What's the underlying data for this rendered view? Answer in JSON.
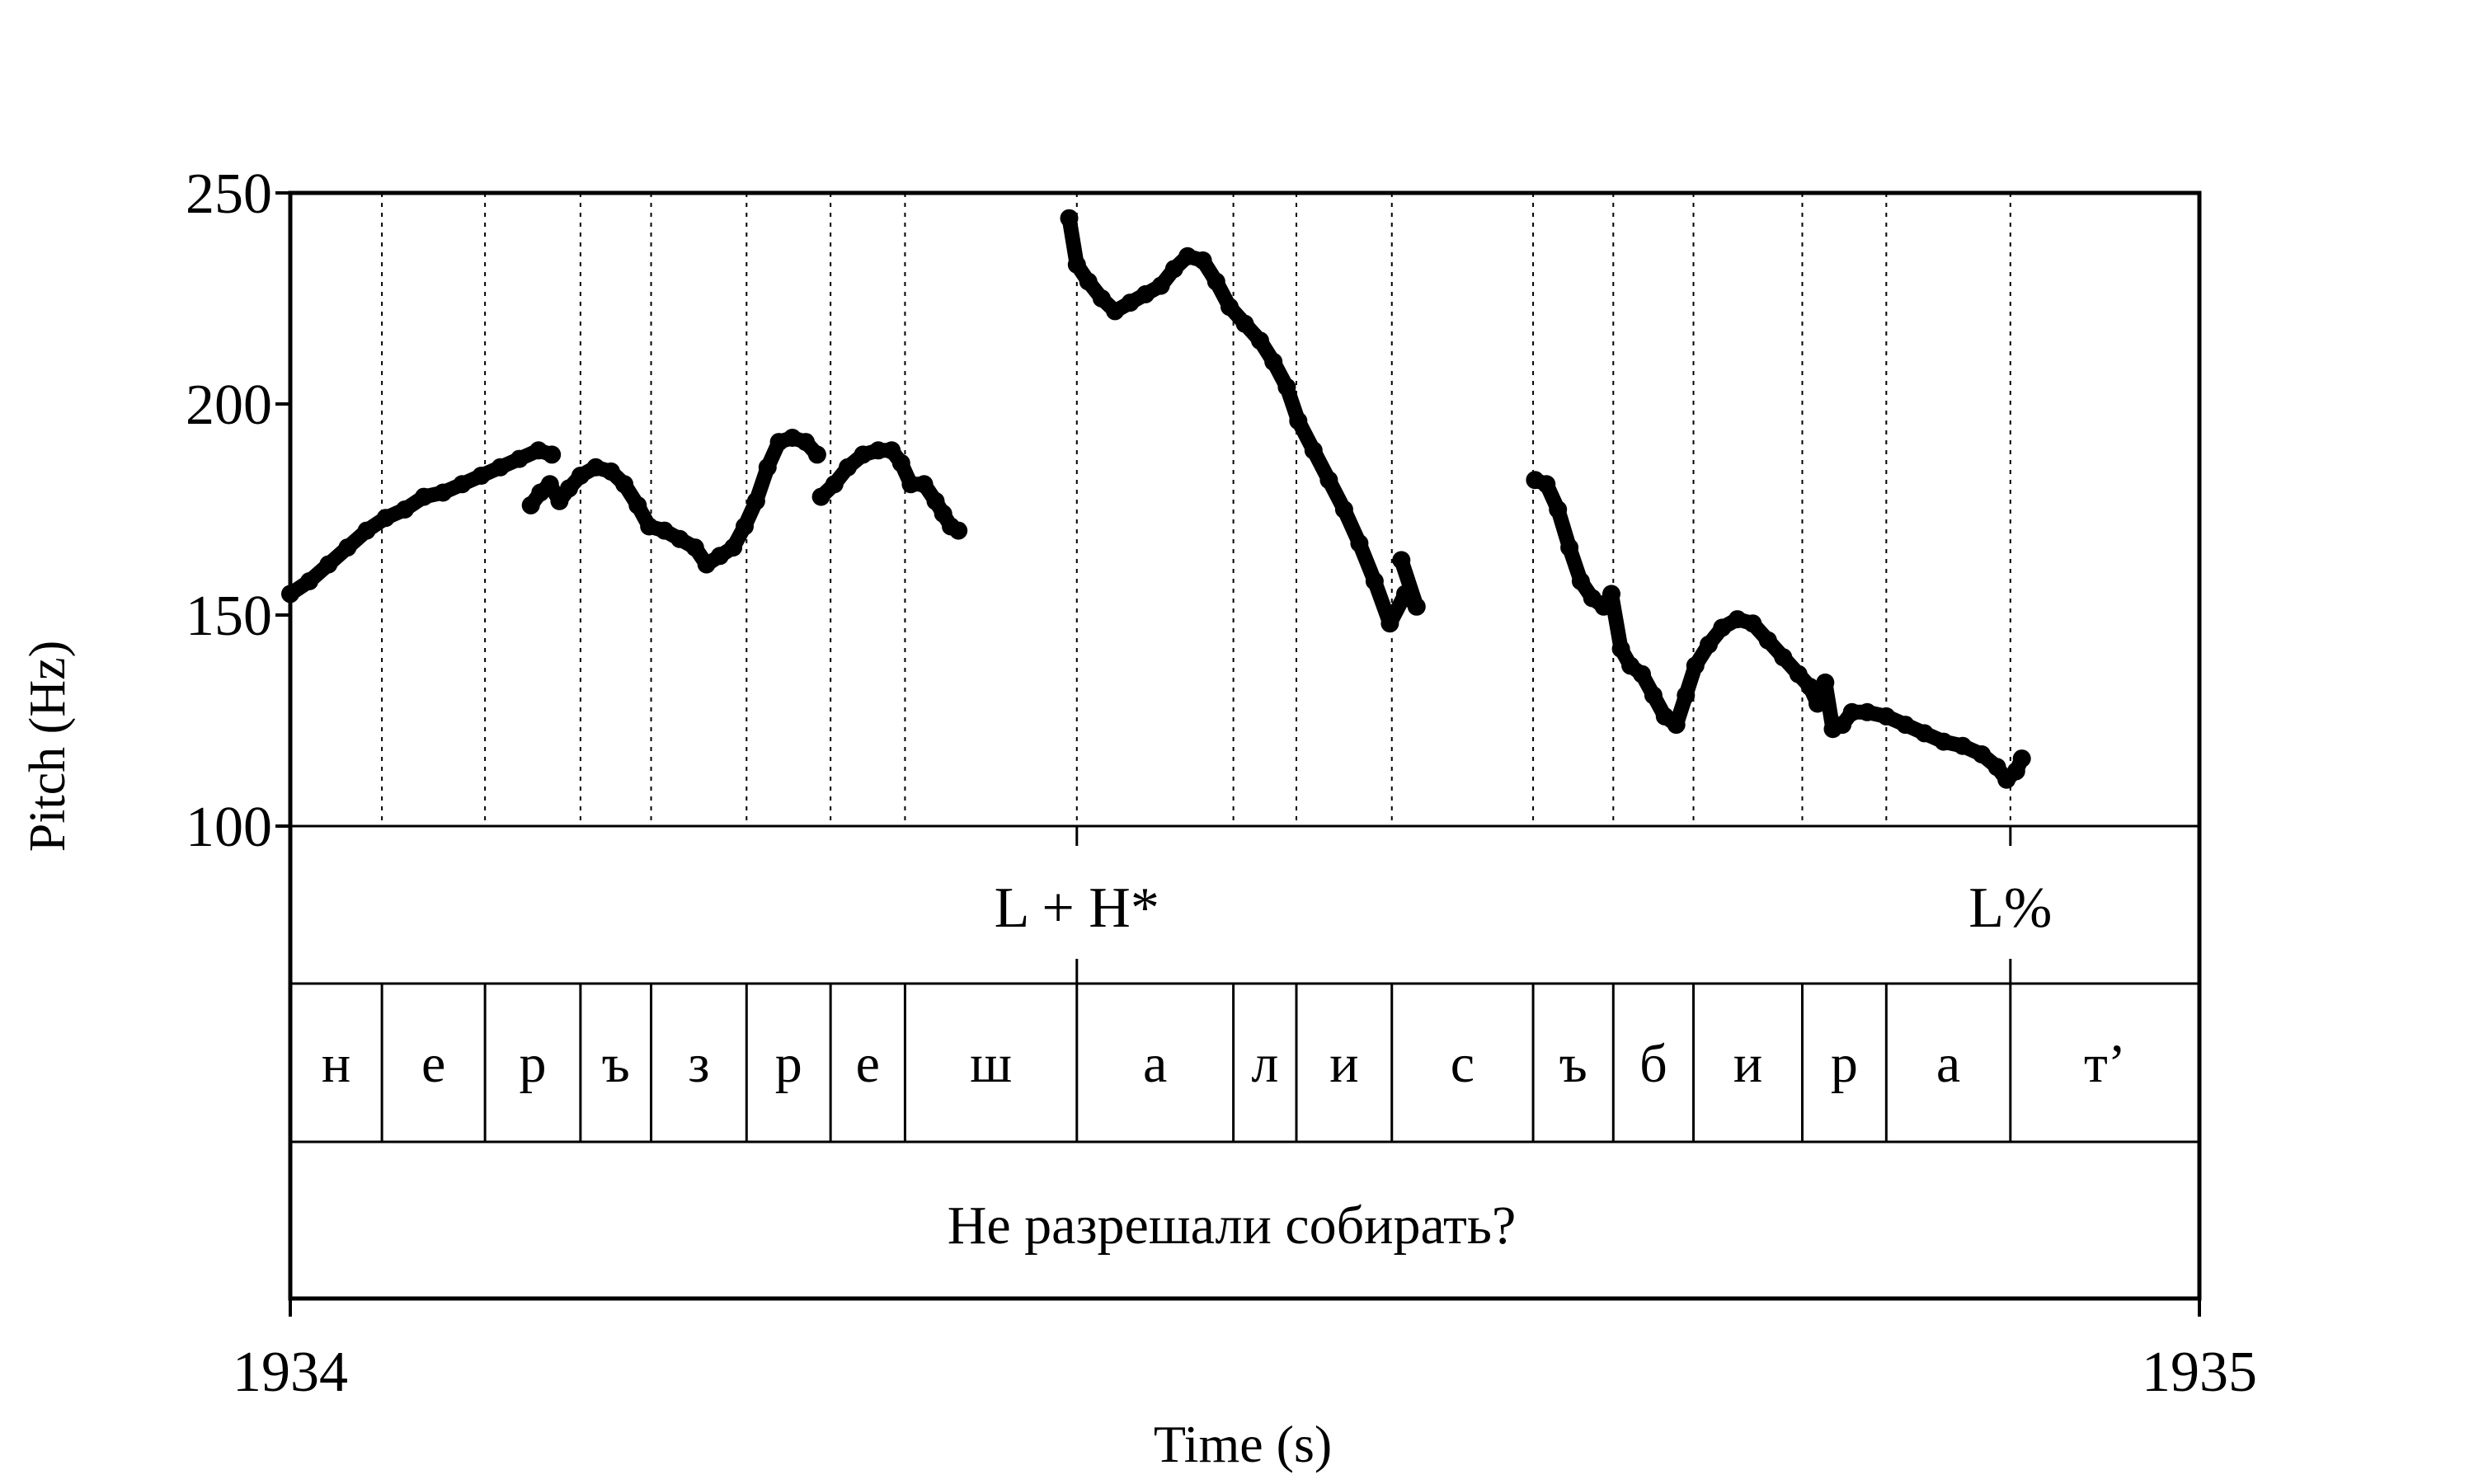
{
  "chart_data": {
    "type": "scatter",
    "ylabel": "Pitch (Hz)",
    "xlabel": "Time (s)",
    "ylim": [
      100,
      250
    ],
    "xlim": [
      1934,
      1935
    ],
    "yticks": [
      "250",
      "200",
      "150",
      "100"
    ],
    "xticks": [
      "1934",
      "1935"
    ],
    "boundaries": [
      1934.048,
      1934.102,
      1934.152,
      1934.189,
      1934.239,
      1934.283,
      1934.322,
      1934.412,
      1934.494,
      1934.527,
      1934.577,
      1934.651,
      1934.693,
      1934.735,
      1934.792,
      1934.836,
      1934.901
    ],
    "tones": [
      {
        "label": "L + H*",
        "t": 1934.412
      },
      {
        "label": "L%",
        "t": 1934.901
      }
    ],
    "segments": [
      {
        "label": "н",
        "start": 1934.0,
        "end": 1934.048
      },
      {
        "label": "е",
        "start": 1934.048,
        "end": 1934.102
      },
      {
        "label": "р",
        "start": 1934.102,
        "end": 1934.152
      },
      {
        "label": "ъ",
        "start": 1934.152,
        "end": 1934.189
      },
      {
        "label": "з",
        "start": 1934.189,
        "end": 1934.239
      },
      {
        "label": "р",
        "start": 1934.239,
        "end": 1934.283
      },
      {
        "label": "е",
        "start": 1934.283,
        "end": 1934.322
      },
      {
        "label": "ш",
        "start": 1934.322,
        "end": 1934.412
      },
      {
        "label": "а",
        "start": 1934.412,
        "end": 1934.494
      },
      {
        "label": "л",
        "start": 1934.494,
        "end": 1934.527
      },
      {
        "label": "и",
        "start": 1934.527,
        "end": 1934.577
      },
      {
        "label": "с",
        "start": 1934.577,
        "end": 1934.651
      },
      {
        "label": "ъ",
        "start": 1934.651,
        "end": 1934.693
      },
      {
        "label": "б",
        "start": 1934.693,
        "end": 1934.735
      },
      {
        "label": "и",
        "start": 1934.735,
        "end": 1934.792
      },
      {
        "label": "р",
        "start": 1934.792,
        "end": 1934.836
      },
      {
        "label": "а",
        "start": 1934.836,
        "end": 1934.901
      },
      {
        "label": "т’",
        "start": 1934.901,
        "end": 1935.0
      }
    ],
    "sentence": "Не разрешали собирать?",
    "pitch_contours": [
      [
        [
          1934.0,
          155
        ],
        [
          1934.01,
          158
        ],
        [
          1934.02,
          162
        ],
        [
          1934.03,
          166
        ],
        [
          1934.04,
          170
        ],
        [
          1934.05,
          173
        ],
        [
          1934.06,
          175
        ],
        [
          1934.07,
          178
        ],
        [
          1934.08,
          179
        ],
        [
          1934.09,
          181
        ],
        [
          1934.1,
          183
        ],
        [
          1934.11,
          185
        ],
        [
          1934.12,
          187
        ],
        [
          1934.13,
          189
        ],
        [
          1934.137,
          188
        ]
      ],
      [
        [
          1934.126,
          176
        ],
        [
          1934.131,
          179
        ],
        [
          1934.136,
          181
        ],
        [
          1934.141,
          177
        ],
        [
          1934.146,
          180
        ],
        [
          1934.152,
          183
        ],
        [
          1934.16,
          185
        ],
        [
          1934.168,
          184
        ],
        [
          1934.175,
          181
        ],
        [
          1934.182,
          176
        ],
        [
          1934.188,
          171
        ],
        [
          1934.196,
          170
        ],
        [
          1934.204,
          168
        ],
        [
          1934.212,
          166
        ],
        [
          1934.218,
          162
        ],
        [
          1934.225,
          164
        ],
        [
          1934.232,
          166
        ],
        [
          1934.238,
          171
        ],
        [
          1934.244,
          177
        ],
        [
          1934.25,
          185
        ],
        [
          1934.256,
          191
        ],
        [
          1934.263,
          192
        ],
        [
          1934.27,
          191
        ],
        [
          1934.276,
          188
        ]
      ],
      [
        [
          1934.278,
          178
        ],
        [
          1934.285,
          181
        ],
        [
          1934.292,
          185
        ],
        [
          1934.3,
          188
        ],
        [
          1934.308,
          189
        ],
        [
          1934.315,
          189
        ],
        [
          1934.32,
          186
        ],
        [
          1934.325,
          181
        ],
        [
          1934.332,
          181
        ],
        [
          1934.338,
          177
        ],
        [
          1934.342,
          174
        ],
        [
          1934.346,
          171
        ],
        [
          1934.35,
          170
        ]
      ],
      [
        [
          1934.408,
          244
        ],
        [
          1934.412,
          233
        ],
        [
          1934.418,
          229
        ],
        [
          1934.425,
          225
        ],
        [
          1934.432,
          222
        ],
        [
          1934.44,
          224
        ],
        [
          1934.448,
          226
        ],
        [
          1934.456,
          228
        ],
        [
          1934.463,
          232
        ],
        [
          1934.47,
          235
        ],
        [
          1934.478,
          234
        ],
        [
          1934.485,
          229
        ],
        [
          1934.492,
          223
        ],
        [
          1934.5,
          219
        ],
        [
          1934.508,
          215
        ],
        [
          1934.515,
          210
        ],
        [
          1934.522,
          204
        ],
        [
          1934.528,
          196
        ],
        [
          1934.536,
          189
        ],
        [
          1934.544,
          182
        ],
        [
          1934.552,
          175
        ],
        [
          1934.56,
          167
        ],
        [
          1934.568,
          158
        ],
        [
          1934.576,
          148
        ],
        [
          1934.584,
          155
        ],
        [
          1934.59,
          152
        ],
        [
          1934.582,
          163
        ]
      ],
      [
        [
          1934.652,
          182
        ],
        [
          1934.658,
          181
        ],
        [
          1934.664,
          175
        ],
        [
          1934.67,
          166
        ],
        [
          1934.676,
          158
        ],
        [
          1934.682,
          154
        ],
        [
          1934.688,
          152
        ],
        [
          1934.692,
          155
        ],
        [
          1934.697,
          142
        ],
        [
          1934.702,
          138
        ],
        [
          1934.708,
          136
        ],
        [
          1934.714,
          131
        ],
        [
          1934.72,
          126
        ],
        [
          1934.726,
          124
        ],
        [
          1934.731,
          131
        ],
        [
          1934.736,
          138
        ],
        [
          1934.743,
          143
        ],
        [
          1934.75,
          147
        ],
        [
          1934.758,
          149
        ],
        [
          1934.766,
          148
        ],
        [
          1934.774,
          144
        ],
        [
          1934.782,
          140
        ],
        [
          1934.79,
          136
        ],
        [
          1934.796,
          133
        ],
        [
          1934.8,
          129
        ],
        [
          1934.804,
          134
        ],
        [
          1934.808,
          123
        ],
        [
          1934.813,
          124
        ],
        [
          1934.818,
          127
        ],
        [
          1934.826,
          127
        ],
        [
          1934.836,
          126
        ],
        [
          1934.846,
          124
        ],
        [
          1934.856,
          122
        ],
        [
          1934.866,
          120
        ],
        [
          1934.876,
          119
        ],
        [
          1934.886,
          117
        ],
        [
          1934.894,
          114
        ],
        [
          1934.899,
          111
        ],
        [
          1934.904,
          113
        ],
        [
          1934.907,
          116
        ]
      ]
    ]
  }
}
